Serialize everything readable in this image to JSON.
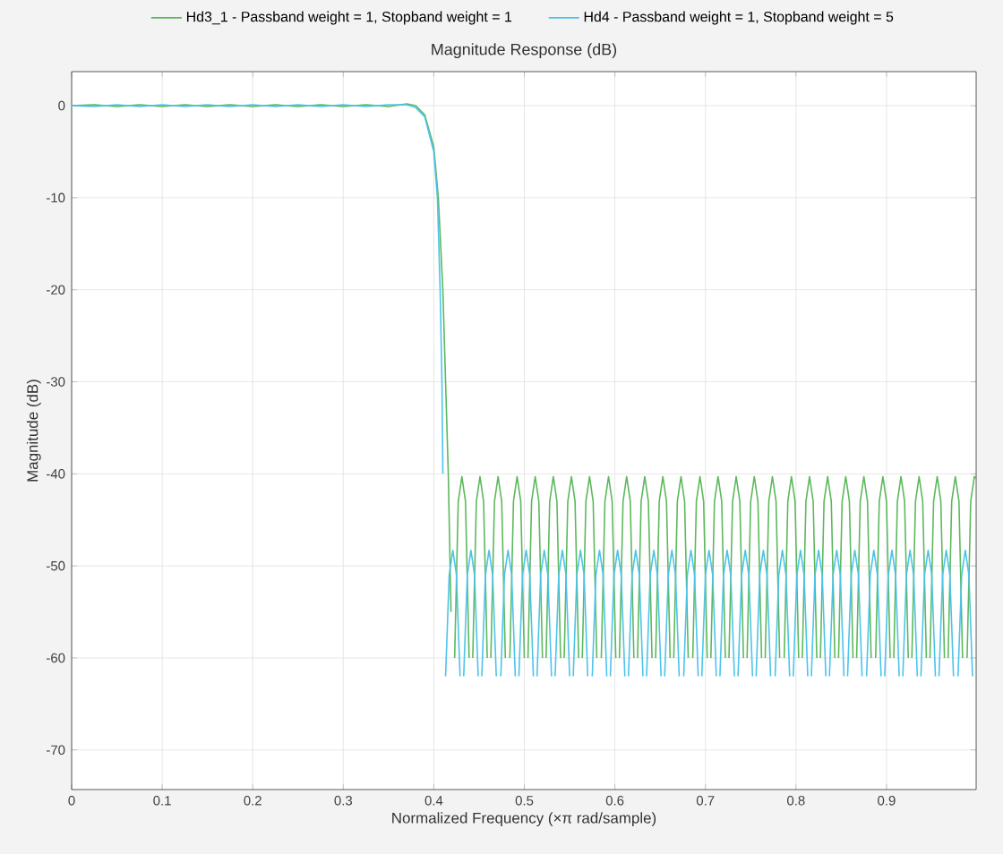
{
  "chart_data": {
    "type": "line",
    "title": "Magnitude Response (dB)",
    "xlabel": "Normalized Frequency (×π rad/sample)",
    "ylabel": "Magnitude (dB)",
    "xlim": [
      0,
      0.999
    ],
    "ylim": [
      -74.3,
      3.7
    ],
    "xticks": [
      0,
      0.1,
      0.2,
      0.3,
      0.4,
      0.5,
      0.6,
      0.7,
      0.8,
      0.9
    ],
    "yticks": [
      -70,
      -60,
      -50,
      -40,
      -30,
      -20,
      -10,
      0
    ],
    "grid": true,
    "legend": "top",
    "series": [
      {
        "name": "Hd3_1 - Passband weight = 1, Stopband weight = 1",
        "color": "#5cb85c",
        "x": [
          0,
          0.025,
          0.05,
          0.075,
          0.1,
          0.125,
          0.15,
          0.175,
          0.2,
          0.225,
          0.25,
          0.275,
          0.3,
          0.325,
          0.35,
          0.37,
          0.38,
          0.39,
          0.4,
          0.405,
          0.41,
          0.413,
          0.416,
          0.419,
          0.421,
          0.423,
          0.427,
          0.431,
          0.435,
          0.439,
          0.441,
          0.443,
          0.447,
          0.451,
          0.455,
          0.459,
          0.461,
          0.463,
          0.467,
          0.471,
          0.475,
          0.479,
          0.481,
          0.484,
          0.488,
          0.492,
          0.496,
          0.5,
          0.502,
          0.504,
          0.508,
          0.512,
          0.516,
          0.52,
          0.522,
          0.524,
          0.528,
          0.532,
          0.536,
          0.54,
          0.542,
          0.544,
          0.548,
          0.552,
          0.556,
          0.56,
          0.562,
          0.564,
          0.568,
          0.572,
          0.576,
          0.58,
          0.582,
          0.585,
          0.589,
          0.593,
          0.597,
          0.601,
          0.603,
          0.605,
          0.609,
          0.613,
          0.617,
          0.621,
          0.623,
          0.625,
          0.629,
          0.633,
          0.637,
          0.641,
          0.643,
          0.645,
          0.649,
          0.653,
          0.657,
          0.661,
          0.663,
          0.665,
          0.669,
          0.673,
          0.677,
          0.681,
          0.683,
          0.686,
          0.69,
          0.694,
          0.698,
          0.702,
          0.704,
          0.706,
          0.71,
          0.714,
          0.718,
          0.722,
          0.724,
          0.726,
          0.73,
          0.734,
          0.738,
          0.742,
          0.744,
          0.746,
          0.75,
          0.754,
          0.758,
          0.762,
          0.764,
          0.766,
          0.77,
          0.774,
          0.778,
          0.782,
          0.784,
          0.787,
          0.791,
          0.795,
          0.799,
          0.803,
          0.805,
          0.807,
          0.811,
          0.815,
          0.819,
          0.823,
          0.825,
          0.827,
          0.831,
          0.835,
          0.839,
          0.843,
          0.845,
          0.847,
          0.851,
          0.855,
          0.859,
          0.863,
          0.865,
          0.867,
          0.871,
          0.875,
          0.879,
          0.883,
          0.885,
          0.888,
          0.892,
          0.896,
          0.9,
          0.904,
          0.906,
          0.908,
          0.912,
          0.916,
          0.92,
          0.924,
          0.926,
          0.928,
          0.932,
          0.936,
          0.94,
          0.944,
          0.946,
          0.948,
          0.952,
          0.956,
          0.96,
          0.964,
          0.966,
          0.968,
          0.972,
          0.976,
          0.98,
          0.984,
          0.986,
          0.989,
          0.993,
          0.997,
          0.999
        ],
        "values": [
          0,
          0.1,
          -0.1,
          0.1,
          -0.1,
          0.1,
          -0.1,
          0.1,
          -0.1,
          0.1,
          -0.1,
          0.1,
          -0.1,
          0.1,
          -0.1,
          0.2,
          0,
          -1,
          -4.5,
          -10,
          -20,
          -30,
          -40,
          -55,
          null,
          -60,
          -43,
          -40.3,
          -43,
          -60,
          null,
          -60,
          -43,
          -40.3,
          -43,
          -60,
          null,
          -60,
          -43,
          -40.3,
          -43,
          -60,
          null,
          -60,
          -43,
          -40.3,
          -43,
          -60,
          null,
          -60,
          -43,
          -40.3,
          -43,
          -60,
          null,
          -60,
          -43,
          -40.3,
          -43,
          -60,
          null,
          -60,
          -43,
          -40.3,
          -43,
          -60,
          null,
          -60,
          -43,
          -40.3,
          -43,
          -60,
          null,
          -60,
          -43,
          -40.3,
          -43,
          -60,
          null,
          -60,
          -43,
          -40.3,
          -43,
          -60,
          null,
          -60,
          -43,
          -40.3,
          -43,
          -60,
          null,
          -60,
          -43,
          -40.3,
          -43,
          -60,
          null,
          -60,
          -43,
          -40.3,
          -43,
          -60,
          null,
          -60,
          -43,
          -40.3,
          -43,
          -60,
          null,
          -60,
          -43,
          -40.3,
          -43,
          -60,
          null,
          -60,
          -43,
          -40.3,
          -43,
          -60,
          null,
          -60,
          -43,
          -40.3,
          -43,
          -60,
          null,
          -60,
          -43,
          -40.3,
          -43,
          -60,
          null,
          -60,
          -43,
          -40.3,
          -43,
          -60,
          null,
          -60,
          -43,
          -40.3,
          -43,
          -60,
          null,
          -60,
          -43,
          -40.3,
          -43,
          -60,
          null,
          -60,
          -43,
          -40.3,
          -43,
          -60,
          null,
          -60,
          -43,
          -40.3,
          -43,
          -60,
          null,
          -60,
          -43,
          -40.3,
          -43,
          -60,
          null,
          -60,
          -43,
          -40.3,
          -43,
          -60,
          null,
          -60,
          -43,
          -40.3,
          -43,
          -60,
          null,
          -60,
          -43,
          -40.3,
          -43,
          -60,
          null,
          -60,
          -43,
          -40.3,
          -43,
          -60,
          null,
          -60,
          -43,
          -40.3,
          -40.5
        ]
      },
      {
        "name": "Hd4 - Passband weight = 1, Stopband weight = 5",
        "color": "#4cc3ec",
        "x": [
          0,
          0.025,
          0.05,
          0.075,
          0.1,
          0.125,
          0.15,
          0.175,
          0.2,
          0.225,
          0.25,
          0.275,
          0.3,
          0.325,
          0.35,
          0.37,
          0.38,
          0.39,
          0.4,
          0.404,
          0.407,
          0.409,
          0.41,
          0.411,
          0.413,
          0.417,
          0.421,
          0.425,
          0.429,
          0.431,
          0.433,
          0.437,
          0.441,
          0.445,
          0.449,
          0.451,
          0.453,
          0.457,
          0.461,
          0.465,
          0.469,
          0.471,
          0.474,
          0.478,
          0.482,
          0.486,
          0.49,
          0.492,
          0.494,
          0.498,
          0.502,
          0.506,
          0.51,
          0.512,
          0.514,
          0.518,
          0.522,
          0.526,
          0.53,
          0.532,
          0.534,
          0.538,
          0.542,
          0.546,
          0.55,
          0.552,
          0.554,
          0.558,
          0.562,
          0.566,
          0.57,
          0.572,
          0.575,
          0.579,
          0.583,
          0.587,
          0.591,
          0.593,
          0.595,
          0.599,
          0.603,
          0.607,
          0.611,
          0.613,
          0.615,
          0.619,
          0.623,
          0.627,
          0.631,
          0.633,
          0.635,
          0.639,
          0.643,
          0.647,
          0.651,
          0.653,
          0.655,
          0.659,
          0.663,
          0.667,
          0.671,
          0.673,
          0.676,
          0.68,
          0.684,
          0.688,
          0.692,
          0.694,
          0.696,
          0.7,
          0.704,
          0.708,
          0.712,
          0.714,
          0.716,
          0.72,
          0.724,
          0.728,
          0.732,
          0.734,
          0.736,
          0.74,
          0.744,
          0.748,
          0.752,
          0.754,
          0.756,
          0.76,
          0.764,
          0.768,
          0.772,
          0.774,
          0.777,
          0.781,
          0.785,
          0.789,
          0.793,
          0.795,
          0.797,
          0.801,
          0.805,
          0.809,
          0.813,
          0.815,
          0.817,
          0.821,
          0.825,
          0.829,
          0.833,
          0.835,
          0.837,
          0.841,
          0.845,
          0.849,
          0.853,
          0.855,
          0.857,
          0.861,
          0.865,
          0.869,
          0.873,
          0.875,
          0.878,
          0.882,
          0.886,
          0.89,
          0.894,
          0.896,
          0.898,
          0.902,
          0.906,
          0.91,
          0.914,
          0.916,
          0.918,
          0.922,
          0.926,
          0.93,
          0.934,
          0.936,
          0.938,
          0.942,
          0.946,
          0.95,
          0.954,
          0.956,
          0.958,
          0.962,
          0.966,
          0.97,
          0.974,
          0.976,
          0.979,
          0.983,
          0.987,
          0.991,
          0.995
        ],
        "values": [
          0,
          -0.1,
          0.1,
          -0.1,
          0.1,
          -0.1,
          0.1,
          -0.1,
          0.1,
          -0.1,
          0.1,
          -0.1,
          0.1,
          -0.1,
          0.1,
          0.1,
          -0.2,
          -1.2,
          -5,
          -10,
          -20,
          -30,
          -40,
          null,
          -62,
          -51,
          -48.3,
          -51,
          -62,
          null,
          -62,
          -51,
          -48.3,
          -51,
          -62,
          null,
          -62,
          -51,
          -48.3,
          -51,
          -62,
          null,
          -62,
          -51,
          -48.3,
          -51,
          -62,
          null,
          -62,
          -51,
          -48.3,
          -51,
          -62,
          null,
          -62,
          -51,
          -48.3,
          -51,
          -62,
          null,
          -62,
          -51,
          -48.3,
          -51,
          -62,
          null,
          -62,
          -51,
          -48.3,
          -51,
          -62,
          null,
          -62,
          -51,
          -48.3,
          -51,
          -62,
          null,
          -62,
          -51,
          -48.3,
          -51,
          -62,
          null,
          -62,
          -51,
          -48.3,
          -51,
          -62,
          null,
          -62,
          -51,
          -48.3,
          -51,
          -62,
          null,
          -62,
          -51,
          -48.3,
          -51,
          -62,
          null,
          -62,
          -51,
          -48.3,
          -51,
          -62,
          null,
          -62,
          -51,
          -48.3,
          -51,
          -62,
          null,
          -62,
          -51,
          -48.3,
          -51,
          -62,
          null,
          -62,
          -51,
          -48.3,
          -51,
          -62,
          null,
          -62,
          -51,
          -48.3,
          -51,
          -62,
          null,
          -62,
          -51,
          -48.3,
          -51,
          -62,
          null,
          -62,
          -51,
          -48.3,
          -51,
          -62,
          null,
          -62,
          -51,
          -48.3,
          -51,
          -62,
          null,
          -62,
          -51,
          -48.3,
          -51,
          -62,
          null,
          -62,
          -51,
          -48.3,
          -51,
          -62,
          null,
          -62,
          -51,
          -48.3,
          -51,
          -62,
          null,
          -62,
          -51,
          -48.3,
          -51,
          -62,
          null,
          -62,
          -51,
          -48.3,
          -51,
          -62,
          null,
          -62,
          -51,
          -48.3,
          -51,
          -62,
          null,
          -62,
          -51,
          -48.3,
          -51,
          -62,
          null,
          -62,
          -51,
          -48.3,
          -51,
          -62
        ]
      }
    ]
  }
}
